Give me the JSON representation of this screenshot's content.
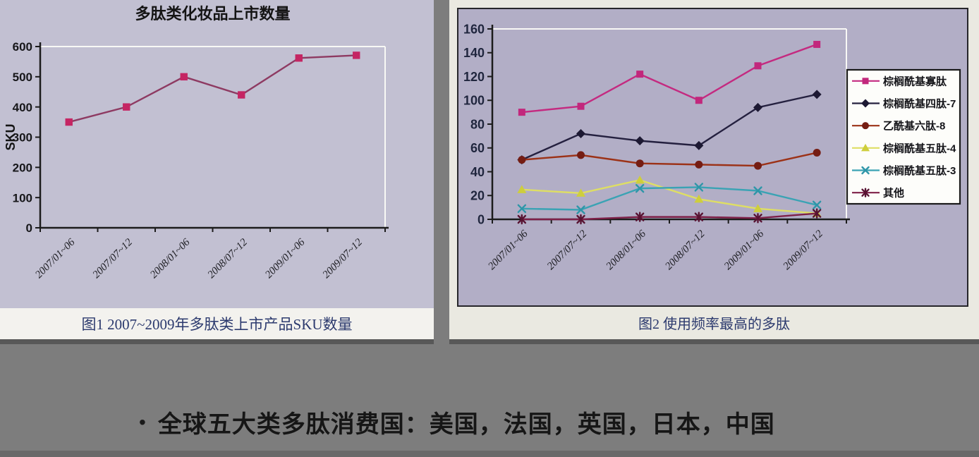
{
  "slide": {
    "bullet": "•",
    "bullet_text": "全球五大类多肽消费国：美国，法国，英国，日本，中国"
  },
  "colors": {
    "slide_bg": "#7d7d7d",
    "plot_bg_left": "#c2c0d2",
    "plot_bg_right": "#b2aec6",
    "caption_text": "#2c3a6e",
    "axis": "#1c1c1c",
    "frame_highlight": "#f8f8f5"
  },
  "chart_data": [
    {
      "type": "line",
      "title": "多肽类化妆品上市数量",
      "caption": "图1 2007~2009年多肽类上市产品SKU数量",
      "xlabel": "",
      "ylabel": "SKU",
      "ylim": [
        0,
        600
      ],
      "ytick_step": 100,
      "yticks": [
        0,
        100,
        200,
        300,
        400,
        500,
        600
      ],
      "grid": false,
      "legend": false,
      "categories": [
        "2007/01~06",
        "2007/07~12",
        "2008/01~06",
        "2008/07~12",
        "2009/01~06",
        "2009/07~12"
      ],
      "series": [
        {
          "name": "SKU",
          "values": [
            350,
            400,
            500,
            440,
            562,
            571
          ],
          "color": "#8e3a62",
          "marker": "square",
          "marker_color": "#c52563"
        }
      ]
    },
    {
      "type": "line",
      "title": "",
      "caption": "图2 使用频率最高的多肽",
      "xlabel": "",
      "ylabel": "",
      "ylim": [
        0,
        160
      ],
      "ytick_step": 20,
      "yticks": [
        0,
        20,
        40,
        60,
        80,
        100,
        120,
        140,
        160
      ],
      "grid": false,
      "legend": true,
      "legend_position": "right",
      "categories": [
        "2007/01~06",
        "2007/07~12",
        "2008/01~06",
        "2008/07~12",
        "2009/01~06",
        "2009/07~12"
      ],
      "series": [
        {
          "name": "棕榈酰基寡肽",
          "values": [
            90,
            95,
            122,
            100,
            129,
            147
          ],
          "color": "#c42a80",
          "marker": "square",
          "marker_color": "#c2277c"
        },
        {
          "name": "棕榈酰基四肽-7",
          "values": [
            50,
            72,
            66,
            62,
            94,
            105
          ],
          "color": "#24203f",
          "marker": "diamond",
          "marker_color": "#1d1933"
        },
        {
          "name": "乙酰基六肽-8",
          "values": [
            50,
            54,
            47,
            46,
            45,
            56
          ],
          "color": "#9c3217",
          "marker": "circle",
          "marker_color": "#751d13"
        },
        {
          "name": "棕榈酰基五肽-4",
          "values": [
            25,
            22,
            33,
            17,
            9,
            5
          ],
          "color": "#dede64",
          "marker": "triangle",
          "marker_color": "#cece3c"
        },
        {
          "name": "棕榈酰基五肽-3",
          "values": [
            9,
            8,
            26,
            27,
            24,
            12
          ],
          "color": "#3aa3b4",
          "marker": "x",
          "marker_color": "#2e96a8"
        },
        {
          "name": "其他",
          "values": [
            0,
            0,
            2,
            2,
            1,
            5
          ],
          "color": "#7e2048",
          "marker": "asterisk",
          "marker_color": "#581332"
        }
      ]
    }
  ]
}
